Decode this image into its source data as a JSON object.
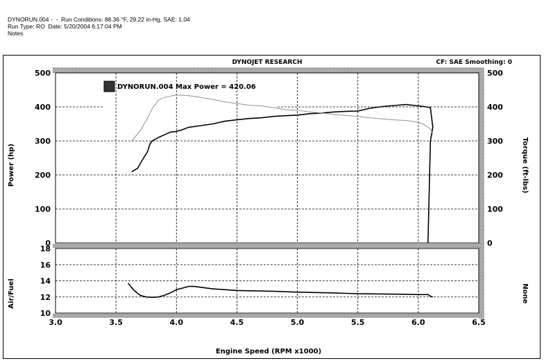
{
  "header": {
    "line1": "DYNORUN.004 -  -  Run Conditions: 88.36 °F, 29.22 in-Hg, SAE: 1.04",
    "line2": "Run Type: RO  Date: 5/20/2004 6:17:04 PM",
    "line3": "Notes"
  },
  "chart_data": [
    {
      "type": "line",
      "title": "DYNOJET RESEARCH",
      "cf_label": "CF: SAE  Smoothing: 0",
      "legend_label": "DYNORUN.004 Max Power = 420.06",
      "xlabel": "Engine Speed (RPM x1000)",
      "ylabel": "Power (hp)",
      "y2label": "Torque (ft-lbs)",
      "xlim": [
        3.0,
        6.5
      ],
      "ylim": [
        0,
        500
      ],
      "x_ticks": [
        "3.0",
        "3.5",
        "4.0",
        "4.5",
        "5.0",
        "5.5",
        "6.0",
        "6.5"
      ],
      "y_ticks": [
        "0",
        "100",
        "200",
        "300",
        "400",
        "500"
      ],
      "grid": true,
      "series": [
        {
          "role": "power",
          "color": "#000000",
          "x": [
            3.63,
            3.68,
            3.72,
            3.76,
            3.78,
            3.8,
            3.85,
            3.9,
            3.95,
            4.0,
            4.05,
            4.1,
            4.2,
            4.3,
            4.4,
            4.5,
            4.6,
            4.7,
            4.8,
            4.9,
            5.0,
            5.1,
            5.2,
            5.3,
            5.4,
            5.5,
            5.6,
            5.7,
            5.8,
            5.9,
            6.0,
            6.05,
            6.1,
            6.12,
            6.1,
            6.08
          ],
          "y": [
            209,
            220,
            245,
            268,
            290,
            300,
            310,
            318,
            326,
            328,
            333,
            340,
            345,
            350,
            358,
            362,
            366,
            368,
            372,
            374,
            376,
            380,
            382,
            385,
            387,
            388,
            396,
            401,
            404,
            407,
            403,
            401,
            398,
            340,
            300,
            0
          ]
        },
        {
          "role": "torque",
          "color": "#909090",
          "x": [
            3.63,
            3.7,
            3.75,
            3.8,
            3.85,
            3.9,
            4.0,
            4.1,
            4.2,
            4.3,
            4.4,
            4.5,
            4.6,
            4.7,
            4.8,
            4.9,
            5.0,
            5.1,
            5.2,
            5.3,
            5.4,
            5.5,
            5.6,
            5.7,
            5.8,
            5.9,
            6.0,
            6.05,
            6.1,
            6.12
          ],
          "y": [
            300,
            330,
            360,
            395,
            420,
            428,
            435,
            433,
            428,
            422,
            415,
            410,
            405,
            403,
            398,
            392,
            390,
            385,
            382,
            378,
            375,
            372,
            368,
            365,
            362,
            360,
            355,
            348,
            335,
            320
          ]
        }
      ]
    },
    {
      "type": "line",
      "ylabel": "Air/Fuel",
      "y2label": "None",
      "xlim": [
        3.0,
        6.5
      ],
      "ylim": [
        10,
        18
      ],
      "y_ticks": [
        "10",
        "12",
        "14",
        "16",
        "18"
      ],
      "grid": true,
      "series": [
        {
          "role": "air-fuel",
          "color": "#000000",
          "x": [
            3.6,
            3.65,
            3.7,
            3.75,
            3.8,
            3.85,
            3.9,
            3.95,
            4.0,
            4.05,
            4.1,
            4.15,
            4.2,
            4.3,
            4.5,
            4.8,
            5.0,
            5.3,
            5.5,
            5.8,
            6.0,
            6.08,
            6.1,
            6.12
          ],
          "y": [
            13.7,
            12.8,
            12.2,
            12.0,
            11.95,
            12.0,
            12.2,
            12.5,
            12.9,
            13.1,
            13.3,
            13.3,
            13.2,
            13.0,
            12.8,
            12.7,
            12.6,
            12.5,
            12.4,
            12.35,
            12.3,
            12.3,
            12.1,
            12.0
          ]
        }
      ]
    }
  ]
}
